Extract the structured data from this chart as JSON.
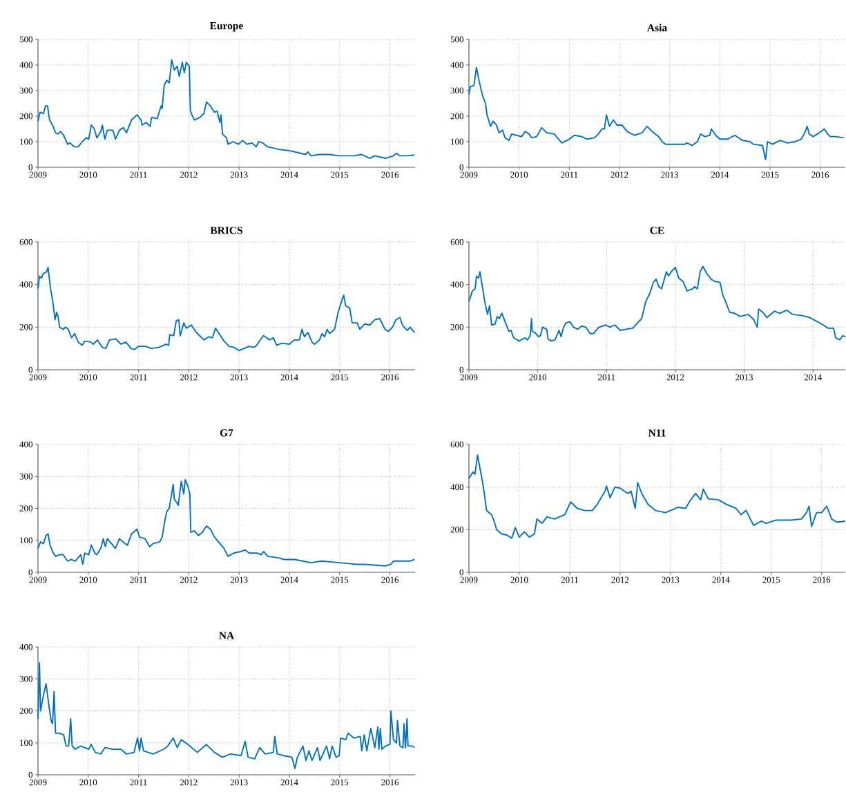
{
  "chart_data": [
    {
      "type": "line",
      "title": "Europe",
      "xlim": [
        2009,
        2016.5
      ],
      "ylim": [
        0,
        500
      ],
      "xticks": [
        2009,
        2010,
        2011,
        2012,
        2013,
        2014,
        2015,
        2016
      ],
      "yticks": [
        0,
        100,
        200,
        300,
        400,
        500
      ],
      "grid": true,
      "x": [
        2009.0,
        2009.04,
        2009.11,
        2009.15,
        2009.19,
        2009.23,
        2009.29,
        2009.35,
        2009.4,
        2009.45,
        2009.51,
        2009.59,
        2009.64,
        2009.72,
        2009.8,
        2009.88,
        2009.96,
        2010.01,
        2010.06,
        2010.12,
        2010.17,
        2010.25,
        2010.28,
        2010.33,
        2010.38,
        2010.49,
        2010.54,
        2010.62,
        2010.7,
        2010.76,
        2010.86,
        2010.97,
        2011.05,
        2011.07,
        2011.15,
        2011.23,
        2011.26,
        2011.37,
        2011.45,
        2011.47,
        2011.51,
        2011.56,
        2011.61,
        2011.66,
        2011.71,
        2011.77,
        2011.81,
        2011.87,
        2011.91,
        2011.95,
        2012.01,
        2012.03,
        2012.11,
        2012.22,
        2012.3,
        2012.35,
        2012.43,
        2012.51,
        2012.56,
        2012.62,
        2012.64,
        2012.67,
        2012.75,
        2012.78,
        2012.88,
        2012.99,
        2013.07,
        2013.15,
        2013.26,
        2013.34,
        2013.39,
        2013.47,
        2013.57,
        2013.79,
        2014.0,
        2014.11,
        2014.32,
        2014.37,
        2014.43,
        2014.59,
        2014.8,
        2014.99,
        2015.28,
        2015.44,
        2015.6,
        2015.7,
        2015.91,
        2016.07,
        2016.13,
        2016.19,
        2016.35,
        2016.49
      ],
      "series": [
        {
          "color": "#0070c0",
          "values": [
            180,
            215,
            210,
            240,
            240,
            185,
            165,
            135,
            130,
            140,
            125,
            90,
            95,
            80,
            80,
            100,
            115,
            110,
            165,
            150,
            115,
            140,
            165,
            110,
            145,
            145,
            110,
            145,
            155,
            135,
            185,
            205,
            185,
            165,
            175,
            160,
            195,
            190,
            240,
            230,
            320,
            340,
            330,
            420,
            380,
            395,
            355,
            410,
            370,
            410,
            395,
            220,
            185,
            195,
            210,
            255,
            240,
            215,
            220,
            175,
            205,
            130,
            115,
            90,
            100,
            90,
            105,
            90,
            95,
            80,
            100,
            95,
            80,
            70,
            65,
            60,
            50,
            60,
            45,
            50,
            50,
            45,
            45,
            50,
            35,
            45,
            35,
            45,
            55,
            45,
            45,
            48
          ]
        }
      ]
    },
    {
      "type": "line",
      "title": "Asia",
      "xlim": [
        2009,
        2016.5
      ],
      "ylim": [
        0,
        500
      ],
      "xticks": [
        2009,
        2010,
        2011,
        2012,
        2013,
        2014,
        2015,
        2016
      ],
      "yticks": [
        0,
        100,
        200,
        300,
        400,
        500
      ],
      "grid": true,
      "x": [
        2009.0,
        2009.03,
        2009.1,
        2009.15,
        2009.2,
        2009.27,
        2009.33,
        2009.36,
        2009.43,
        2009.48,
        2009.55,
        2009.6,
        2009.67,
        2009.72,
        2009.8,
        2009.85,
        2009.95,
        2010.05,
        2010.12,
        2010.2,
        2010.25,
        2010.35,
        2010.45,
        2010.55,
        2010.7,
        2010.85,
        2011.0,
        2011.1,
        2011.25,
        2011.35,
        2011.5,
        2011.58,
        2011.65,
        2011.7,
        2011.74,
        2011.8,
        2011.88,
        2011.95,
        2012.05,
        2012.15,
        2012.3,
        2012.45,
        2012.55,
        2012.65,
        2012.78,
        2012.85,
        2012.92,
        2013.1,
        2013.3,
        2013.35,
        2013.45,
        2013.55,
        2013.62,
        2013.7,
        2013.8,
        2013.83,
        2013.92,
        2014.0,
        2014.15,
        2014.3,
        2014.45,
        2014.6,
        2014.67,
        2014.85,
        2014.91,
        2014.95,
        2015.05,
        2015.2,
        2015.35,
        2015.5,
        2015.62,
        2015.68,
        2015.74,
        2015.78,
        2015.86,
        2016.02,
        2016.08,
        2016.15,
        2016.2,
        2016.3,
        2016.47
      ],
      "series": [
        {
          "color": "#0070c0",
          "values": [
            285,
            315,
            320,
            390,
            340,
            280,
            250,
            205,
            160,
            180,
            165,
            135,
            145,
            115,
            105,
            130,
            125,
            120,
            140,
            130,
            115,
            120,
            155,
            135,
            130,
            95,
            110,
            125,
            120,
            110,
            115,
            130,
            150,
            150,
            205,
            160,
            185,
            165,
            165,
            140,
            125,
            135,
            160,
            140,
            120,
            100,
            90,
            90,
            90,
            95,
            85,
            100,
            130,
            120,
            125,
            150,
            125,
            110,
            110,
            125,
            105,
            100,
            90,
            85,
            30,
            100,
            90,
            105,
            95,
            100,
            110,
            130,
            160,
            130,
            120,
            140,
            150,
            130,
            120,
            120,
            115
          ]
        }
      ]
    },
    {
      "type": "line",
      "title": "BRICS",
      "xlim": [
        2009,
        2016.5
      ],
      "ylim": [
        0,
        600
      ],
      "xticks": [
        2009,
        2010,
        2011,
        2012,
        2013,
        2014,
        2015,
        2016
      ],
      "yticks": [
        0,
        200,
        400,
        600
      ],
      "grid": true,
      "x": [
        2009.0,
        2009.03,
        2009.07,
        2009.1,
        2009.17,
        2009.2,
        2009.25,
        2009.3,
        2009.34,
        2009.37,
        2009.4,
        2009.43,
        2009.5,
        2009.55,
        2009.6,
        2009.67,
        2009.73,
        2009.8,
        2009.88,
        2009.93,
        2010.05,
        2010.1,
        2010.18,
        2010.28,
        2010.35,
        2010.42,
        2010.55,
        2010.65,
        2010.75,
        2010.85,
        2010.92,
        2011.0,
        2011.15,
        2011.25,
        2011.4,
        2011.55,
        2011.6,
        2011.62,
        2011.7,
        2011.75,
        2011.8,
        2011.83,
        2011.9,
        2011.95,
        2012.05,
        2012.15,
        2012.3,
        2012.4,
        2012.47,
        2012.53,
        2012.6,
        2012.7,
        2012.8,
        2012.9,
        2013.0,
        2013.1,
        2013.2,
        2013.3,
        2013.35,
        2013.48,
        2013.55,
        2013.6,
        2013.68,
        2013.75,
        2013.85,
        2014.0,
        2014.1,
        2014.2,
        2014.25,
        2014.3,
        2014.37,
        2014.45,
        2014.5,
        2014.6,
        2014.65,
        2014.7,
        2014.75,
        2014.8,
        2014.9,
        2014.97,
        2015.05,
        2015.08,
        2015.12,
        2015.2,
        2015.25,
        2015.35,
        2015.4,
        2015.5,
        2015.6,
        2015.7,
        2015.8,
        2015.9,
        2015.97,
        2016.05,
        2016.12,
        2016.2,
        2016.25,
        2016.3,
        2016.35,
        2016.4,
        2016.49
      ],
      "series": [
        {
          "color": "#0070c0",
          "values": [
            380,
            440,
            430,
            450,
            460,
            480,
            380,
            310,
            235,
            270,
            250,
            200,
            190,
            200,
            190,
            150,
            170,
            130,
            115,
            135,
            130,
            120,
            140,
            105,
            100,
            140,
            145,
            120,
            130,
            100,
            95,
            110,
            110,
            100,
            105,
            120,
            115,
            165,
            160,
            230,
            235,
            160,
            220,
            195,
            210,
            175,
            140,
            155,
            150,
            195,
            170,
            135,
            110,
            105,
            90,
            100,
            110,
            105,
            115,
            160,
            150,
            140,
            150,
            115,
            125,
            120,
            140,
            140,
            190,
            155,
            175,
            130,
            120,
            140,
            170,
            155,
            190,
            170,
            190,
            270,
            330,
            350,
            300,
            290,
            220,
            220,
            190,
            215,
            210,
            235,
            240,
            190,
            180,
            200,
            235,
            245,
            210,
            195,
            185,
            200,
            175
          ]
        }
      ]
    },
    {
      "type": "line",
      "title": "CE",
      "xlim": [
        2009,
        2014.47
      ],
      "ylim": [
        0,
        600
      ],
      "xticks": [
        2009,
        2010,
        2011,
        2012,
        2013,
        2014
      ],
      "yticks": [
        0,
        200,
        400,
        600
      ],
      "grid": true,
      "x": [
        2009.0,
        2009.05,
        2009.09,
        2009.11,
        2009.14,
        2009.16,
        2009.19,
        2009.23,
        2009.27,
        2009.3,
        2009.33,
        2009.38,
        2009.41,
        2009.44,
        2009.48,
        2009.52,
        2009.58,
        2009.61,
        2009.65,
        2009.73,
        2009.81,
        2009.85,
        2009.89,
        2009.91,
        2009.92,
        2009.96,
        2010.01,
        2010.04,
        2010.07,
        2010.13,
        2010.15,
        2010.19,
        2010.25,
        2010.31,
        2010.34,
        2010.37,
        2010.41,
        2010.47,
        2010.52,
        2010.58,
        2010.64,
        2010.7,
        2010.76,
        2010.81,
        2010.89,
        2010.99,
        2011.05,
        2011.12,
        2011.2,
        2011.28,
        2011.38,
        2011.45,
        2011.51,
        2011.57,
        2011.63,
        2011.68,
        2011.72,
        2011.76,
        2011.8,
        2011.87,
        2011.9,
        2011.94,
        2012.0,
        2012.05,
        2012.11,
        2012.17,
        2012.25,
        2012.28,
        2012.32,
        2012.36,
        2012.4,
        2012.46,
        2012.52,
        2012.57,
        2012.65,
        2012.69,
        2012.73,
        2012.79,
        2012.86,
        2012.94,
        2013.0,
        2013.06,
        2013.14,
        2013.19,
        2013.21,
        2013.27,
        2013.33,
        2013.44,
        2013.52,
        2013.62,
        2013.7,
        2013.83,
        2013.95,
        2014.07,
        2014.15,
        2014.22,
        2014.3,
        2014.33,
        2014.39,
        2014.43,
        2014.47
      ],
      "series": [
        {
          "color": "#0070c0",
          "values": [
            320,
            370,
            380,
            440,
            430,
            460,
            400,
            320,
            260,
            300,
            210,
            215,
            250,
            240,
            265,
            230,
            180,
            185,
            150,
            135,
            150,
            140,
            160,
            240,
            180,
            175,
            155,
            160,
            200,
            190,
            145,
            135,
            140,
            185,
            155,
            195,
            220,
            225,
            200,
            190,
            205,
            200,
            170,
            170,
            200,
            210,
            200,
            210,
            185,
            190,
            195,
            220,
            240,
            320,
            360,
            410,
            425,
            390,
            380,
            460,
            440,
            460,
            480,
            430,
            415,
            370,
            380,
            390,
            380,
            460,
            485,
            450,
            425,
            415,
            410,
            350,
            320,
            270,
            265,
            250,
            255,
            260,
            235,
            200,
            285,
            270,
            245,
            275,
            265,
            280,
            260,
            255,
            245,
            225,
            210,
            195,
            195,
            150,
            140,
            160,
            155
          ]
        }
      ]
    },
    {
      "type": "line",
      "title": "G7",
      "xlim": [
        2009,
        2016.5
      ],
      "ylim": [
        0,
        400
      ],
      "xticks": [
        2009,
        2010,
        2011,
        2012,
        2013,
        2014,
        2015,
        2016
      ],
      "yticks": [
        0,
        100,
        200,
        300,
        400
      ],
      "grid": true,
      "x": [
        2009.0,
        2009.05,
        2009.11,
        2009.16,
        2009.2,
        2009.24,
        2009.29,
        2009.35,
        2009.43,
        2009.5,
        2009.59,
        2009.66,
        2009.74,
        2009.85,
        2009.89,
        2009.93,
        2010.01,
        2010.06,
        2010.13,
        2010.17,
        2010.25,
        2010.3,
        2010.34,
        2010.38,
        2010.46,
        2010.54,
        2010.62,
        2010.73,
        2010.78,
        2010.86,
        2010.97,
        2011.02,
        2011.13,
        2011.22,
        2011.29,
        2011.42,
        2011.47,
        2011.51,
        2011.56,
        2011.61,
        2011.69,
        2011.71,
        2011.79,
        2011.85,
        2011.9,
        2011.93,
        2011.98,
        2012.02,
        2012.04,
        2012.11,
        2012.19,
        2012.27,
        2012.35,
        2012.43,
        2012.51,
        2012.62,
        2012.7,
        2012.78,
        2012.89,
        2013.04,
        2013.12,
        2013.2,
        2013.36,
        2013.44,
        2013.49,
        2013.57,
        2013.79,
        2013.89,
        2014.11,
        2014.43,
        2014.64,
        2015.0,
        2015.33,
        2015.49,
        2015.91,
        2016.02,
        2016.07,
        2016.23,
        2016.39,
        2016.49
      ],
      "series": [
        {
          "color": "#0070c0",
          "values": [
            75,
            95,
            90,
            115,
            120,
            85,
            65,
            50,
            55,
            55,
            35,
            40,
            35,
            55,
            25,
            60,
            55,
            85,
            60,
            55,
            75,
            105,
            80,
            105,
            90,
            75,
            105,
            90,
            85,
            120,
            135,
            110,
            105,
            80,
            90,
            95,
            110,
            150,
            190,
            200,
            275,
            230,
            210,
            285,
            245,
            290,
            270,
            245,
            125,
            130,
            115,
            125,
            145,
            135,
            110,
            90,
            75,
            50,
            60,
            65,
            70,
            60,
            60,
            55,
            65,
            50,
            45,
            40,
            40,
            30,
            35,
            30,
            25,
            25,
            20,
            25,
            35,
            35,
            35,
            40
          ]
        }
      ]
    },
    {
      "type": "line",
      "title": "N11",
      "xlim": [
        2009,
        2016.47
      ],
      "ylim": [
        0,
        600
      ],
      "xticks": [
        2009,
        2010,
        2011,
        2012,
        2013,
        2014,
        2015,
        2016
      ],
      "yticks": [
        0,
        200,
        400,
        600
      ],
      "grid": true,
      "x": [
        2009.0,
        2009.08,
        2009.12,
        2009.17,
        2009.25,
        2009.3,
        2009.35,
        2009.45,
        2009.5,
        2009.55,
        2009.65,
        2009.75,
        2009.85,
        2009.92,
        2010.0,
        2010.1,
        2010.2,
        2010.3,
        2010.35,
        2010.45,
        2010.55,
        2010.7,
        2010.9,
        2011.02,
        2011.15,
        2011.3,
        2011.45,
        2011.55,
        2011.7,
        2011.73,
        2011.8,
        2011.9,
        2012.0,
        2012.15,
        2012.22,
        2012.3,
        2012.35,
        2012.43,
        2012.55,
        2012.7,
        2012.9,
        2013.0,
        2013.15,
        2013.3,
        2013.4,
        2013.5,
        2013.6,
        2013.65,
        2013.75,
        2013.95,
        2014.1,
        2014.3,
        2014.4,
        2014.5,
        2014.65,
        2014.8,
        2014.9,
        2015.1,
        2015.4,
        2015.6,
        2015.7,
        2015.75,
        2015.8,
        2015.9,
        2016.0,
        2016.1,
        2016.2,
        2016.3,
        2016.47
      ],
      "series": [
        {
          "color": "#0070c0",
          "values": [
            440,
            470,
            460,
            550,
            450,
            380,
            290,
            270,
            240,
            200,
            180,
            175,
            160,
            210,
            165,
            190,
            165,
            180,
            250,
            230,
            260,
            250,
            270,
            330,
            300,
            290,
            290,
            320,
            380,
            405,
            350,
            400,
            395,
            370,
            380,
            300,
            420,
            370,
            320,
            290,
            280,
            290,
            305,
            300,
            340,
            370,
            340,
            390,
            345,
            340,
            320,
            300,
            270,
            290,
            220,
            240,
            230,
            245,
            245,
            250,
            280,
            310,
            215,
            280,
            280,
            310,
            250,
            235,
            240
          ]
        }
      ]
    },
    {
      "type": "line",
      "title": "NA",
      "xlim": [
        2009,
        2016.5
      ],
      "ylim": [
        0,
        400
      ],
      "xticks": [
        2009,
        2010,
        2011,
        2012,
        2013,
        2014,
        2015,
        2016
      ],
      "yticks": [
        0,
        100,
        200,
        300,
        400
      ],
      "grid": true,
      "x": [
        2009.0,
        2009.03,
        2009.05,
        2009.11,
        2009.16,
        2009.21,
        2009.26,
        2009.29,
        2009.32,
        2009.35,
        2009.43,
        2009.51,
        2009.56,
        2009.61,
        2009.65,
        2009.68,
        2009.74,
        2009.85,
        2010.01,
        2010.06,
        2010.14,
        2010.25,
        2010.33,
        2010.49,
        2010.65,
        2010.76,
        2010.91,
        2010.98,
        2011.02,
        2011.05,
        2011.1,
        2011.29,
        2011.5,
        2011.58,
        2011.69,
        2011.77,
        2011.85,
        2011.98,
        2012.17,
        2012.35,
        2012.51,
        2012.67,
        2012.83,
        2013.04,
        2013.12,
        2013.18,
        2013.31,
        2013.41,
        2013.52,
        2013.68,
        2013.71,
        2013.76,
        2013.89,
        2014.05,
        2014.11,
        2014.16,
        2014.27,
        2014.33,
        2014.39,
        2014.45,
        2014.56,
        2014.61,
        2014.74,
        2014.8,
        2014.85,
        2014.93,
        2014.99,
        2015.02,
        2015.12,
        2015.17,
        2015.28,
        2015.41,
        2015.44,
        2015.49,
        2015.54,
        2015.62,
        2015.7,
        2015.76,
        2015.78,
        2015.81,
        2015.84,
        2015.91,
        2016.0,
        2016.02,
        2016.07,
        2016.13,
        2016.15,
        2016.2,
        2016.26,
        2016.28,
        2016.31,
        2016.34,
        2016.36,
        2016.45,
        2016.49
      ],
      "series": [
        {
          "color": "#0070c0",
          "values": [
            175,
            350,
            200,
            250,
            285,
            225,
            170,
            160,
            260,
            130,
            130,
            125,
            90,
            90,
            175,
            90,
            80,
            90,
            80,
            95,
            70,
            65,
            85,
            80,
            80,
            65,
            70,
            115,
            75,
            115,
            75,
            65,
            80,
            90,
            115,
            85,
            110,
            95,
            70,
            95,
            70,
            55,
            65,
            60,
            105,
            55,
            50,
            85,
            65,
            70,
            120,
            65,
            60,
            55,
            20,
            55,
            90,
            45,
            75,
            45,
            85,
            45,
            90,
            50,
            90,
            55,
            60,
            115,
            110,
            130,
            115,
            120,
            75,
            125,
            75,
            145,
            85,
            150,
            80,
            145,
            80,
            90,
            95,
            200,
            110,
            100,
            170,
            90,
            85,
            160,
            85,
            175,
            90,
            90,
            85
          ]
        }
      ]
    }
  ]
}
